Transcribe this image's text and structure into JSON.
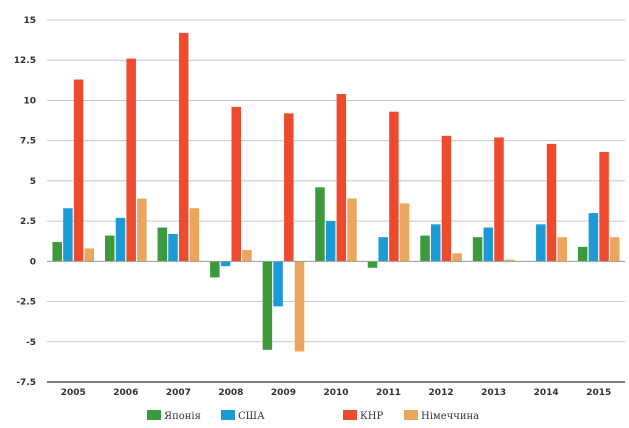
{
  "chart_data": {
    "type": "bar",
    "title": "",
    "xlabel": "",
    "ylabel": "",
    "categories": [
      "2005",
      "2006",
      "2007",
      "2008",
      "2009",
      "2010",
      "2011",
      "2012",
      "2013",
      "2014",
      "2015"
    ],
    "ylim": [
      -7.5,
      15
    ],
    "yticks": [
      "-7.5",
      "-5",
      "-2.5",
      "0",
      "2.5",
      "5",
      "7.5",
      "10",
      "12.5",
      "15"
    ],
    "grid": true,
    "legend_position": "bottom",
    "series": [
      {
        "name": "Японія",
        "color": "#3c9a3c",
        "values": [
          1.2,
          1.6,
          2.1,
          -1.0,
          -5.5,
          4.6,
          -0.4,
          1.6,
          1.5,
          0.0,
          0.9
        ]
      },
      {
        "name": "США",
        "color": "#1c9ad6",
        "values": [
          3.3,
          2.7,
          1.7,
          -0.3,
          -2.8,
          2.5,
          1.5,
          2.3,
          2.1,
          2.3,
          3.0
        ]
      },
      {
        "name": "КНР",
        "color": "#ee4a2e",
        "values": [
          11.3,
          12.6,
          14.2,
          9.6,
          9.2,
          10.4,
          9.3,
          7.8,
          7.7,
          7.3,
          6.8
        ]
      },
      {
        "name": "Німеччина",
        "color": "#eaa65c",
        "values": [
          0.8,
          3.9,
          3.3,
          0.7,
          -5.6,
          3.9,
          3.6,
          0.5,
          0.1,
          1.5,
          1.5
        ]
      }
    ]
  }
}
